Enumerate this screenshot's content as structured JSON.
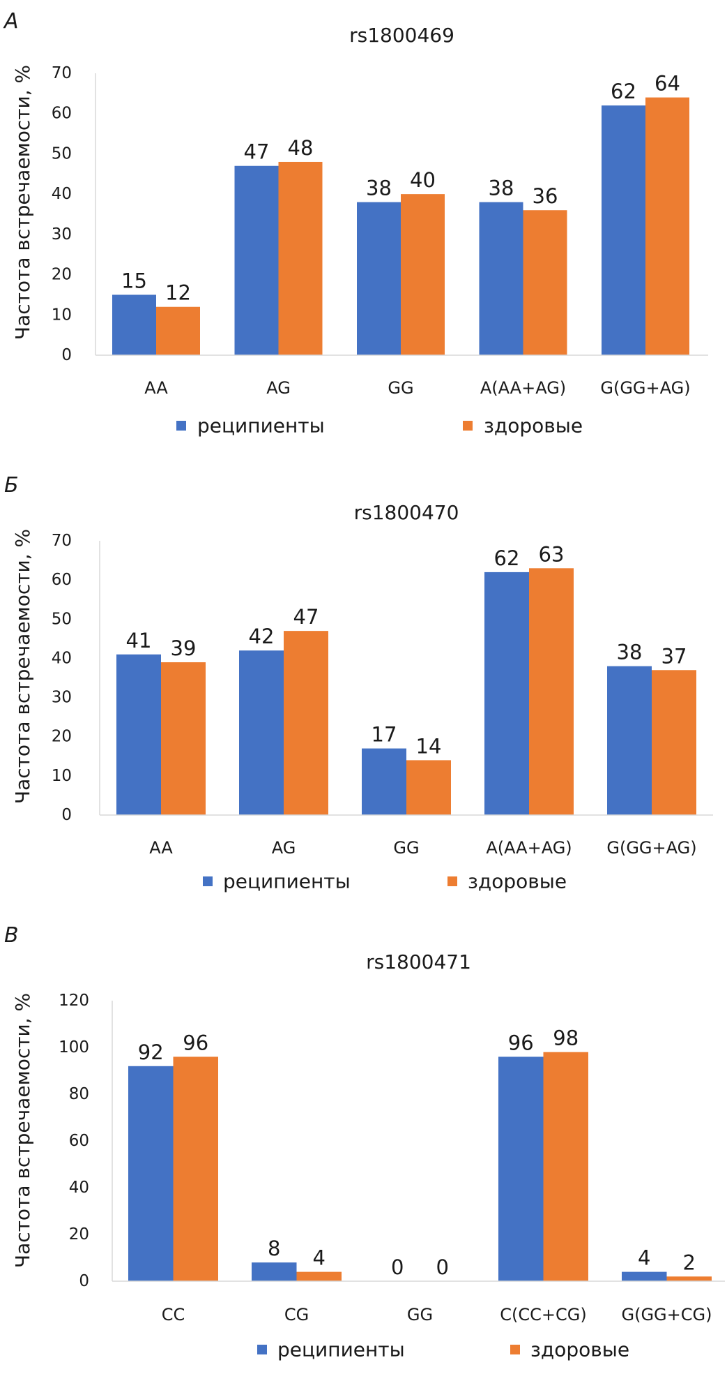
{
  "figure": {
    "y_axis_title": "Частота встречаемости, %",
    "legend": [
      {
        "label": "реципиенты",
        "color": "#4472C4"
      },
      {
        "label": "здоровые",
        "color": "#ED7D31"
      }
    ]
  },
  "chart_data": [
    {
      "type": "bar",
      "panel": "А",
      "title": "rs1800469",
      "xlabel": "",
      "ylabel": "Частота встречаемости, %",
      "ylim": [
        0,
        70
      ],
      "yticks": [
        0,
        10,
        20,
        30,
        40,
        50,
        60,
        70
      ],
      "grid": false,
      "legend_position": "bottom",
      "categories": [
        "AA",
        "AG",
        "GG",
        "A(AA+AG)",
        "G(GG+AG)"
      ],
      "series": [
        {
          "name": "реципиенты",
          "color": "#4472C4",
          "values": [
            15,
            47,
            38,
            38,
            62
          ]
        },
        {
          "name": "здоровые",
          "color": "#ED7D31",
          "values": [
            12,
            48,
            40,
            36,
            64
          ]
        }
      ]
    },
    {
      "type": "bar",
      "panel": "Б",
      "title": "rs1800470",
      "xlabel": "",
      "ylabel": "Частота встречаемости, %",
      "ylim": [
        0,
        70
      ],
      "yticks": [
        0,
        10,
        20,
        30,
        40,
        50,
        60,
        70
      ],
      "grid": false,
      "legend_position": "bottom",
      "categories": [
        "AA",
        "AG",
        "GG",
        "A(AA+AG)",
        "G(GG+AG)"
      ],
      "series": [
        {
          "name": "реципиенты",
          "color": "#4472C4",
          "values": [
            41,
            42,
            17,
            62,
            38
          ]
        },
        {
          "name": "здоровые",
          "color": "#ED7D31",
          "values": [
            39,
            47,
            14,
            63,
            37
          ]
        }
      ]
    },
    {
      "type": "bar",
      "panel": "В",
      "title": "rs1800471",
      "xlabel": "",
      "ylabel": "Частота встречаемости, %",
      "ylim": [
        0,
        120
      ],
      "yticks": [
        0,
        20,
        40,
        60,
        80,
        100,
        120
      ],
      "grid": false,
      "legend_position": "bottom",
      "categories": [
        "CC",
        "CG",
        "GG",
        "C(CC+CG)",
        "G(GG+CG)"
      ],
      "series": [
        {
          "name": "реципиенты",
          "color": "#4472C4",
          "values": [
            92,
            8,
            0,
            96,
            4
          ]
        },
        {
          "name": "здоровые",
          "color": "#ED7D31",
          "values": [
            96,
            4,
            0,
            98,
            2
          ]
        }
      ]
    }
  ]
}
